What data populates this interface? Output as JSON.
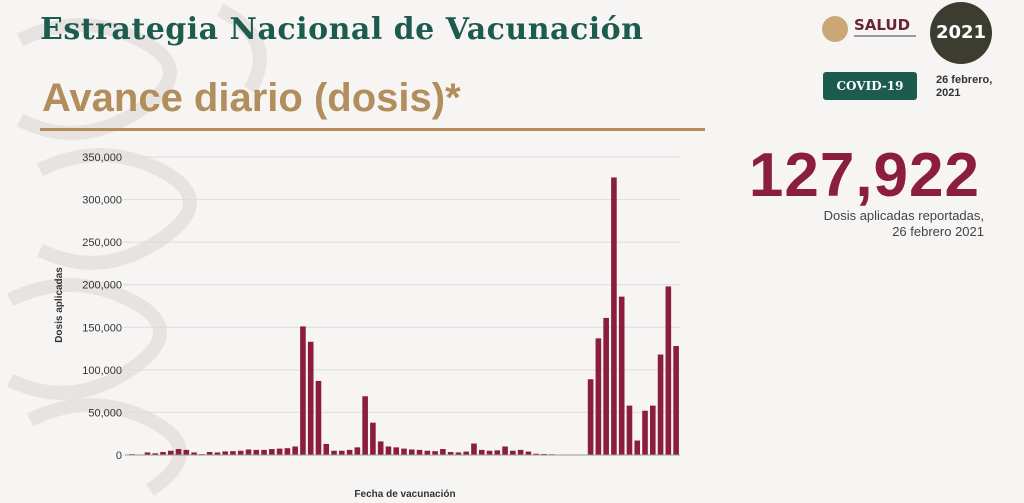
{
  "header": {
    "title": "Estrategia Nacional de Vacunación",
    "subtitle": "Avance diario (dosis)*"
  },
  "logos": {
    "salud": "SALUD",
    "year": "2021"
  },
  "tag": {
    "label": "COVID-19",
    "date_line1": "26 febrero,",
    "date_line2": "2021"
  },
  "summary": {
    "value": "127,922",
    "caption_line1": "Dosis aplicadas reportadas,",
    "caption_line2": "26 febrero 2021"
  },
  "colors": {
    "bar": "#8b1e3f",
    "title": "#1e5b4f",
    "accent": "#b38e5d"
  },
  "chart_data": {
    "type": "bar",
    "xlabel": "Fecha de vacunación",
    "ylabel": "Dosis aplicadas",
    "ylim": [
      0,
      350000
    ],
    "yticks": [
      "0",
      "50,000",
      "100,000",
      "150,000",
      "200,000",
      "250,000",
      "300,000",
      "350,000"
    ],
    "grid": true,
    "values": [
      1000,
      400,
      3000,
      2000,
      3500,
      5000,
      7000,
      6000,
      3000,
      1000,
      3500,
      3000,
      4200,
      4500,
      5000,
      6500,
      6000,
      6000,
      7000,
      7500,
      8000,
      10000,
      151000,
      133000,
      87000,
      13000,
      5000,
      5000,
      6000,
      9000,
      69000,
      38000,
      16000,
      10000,
      9000,
      7500,
      6500,
      6000,
      5000,
      4500,
      7000,
      3500,
      3000,
      4000,
      13500,
      6000,
      5000,
      5500,
      10000,
      5000,
      6000,
      4000,
      1500,
      1200,
      900,
      600,
      400,
      300,
      200,
      89000,
      137000,
      161000,
      326000,
      186000,
      58000,
      17000,
      52000,
      58000,
      118000,
      198000,
      128000
    ]
  }
}
